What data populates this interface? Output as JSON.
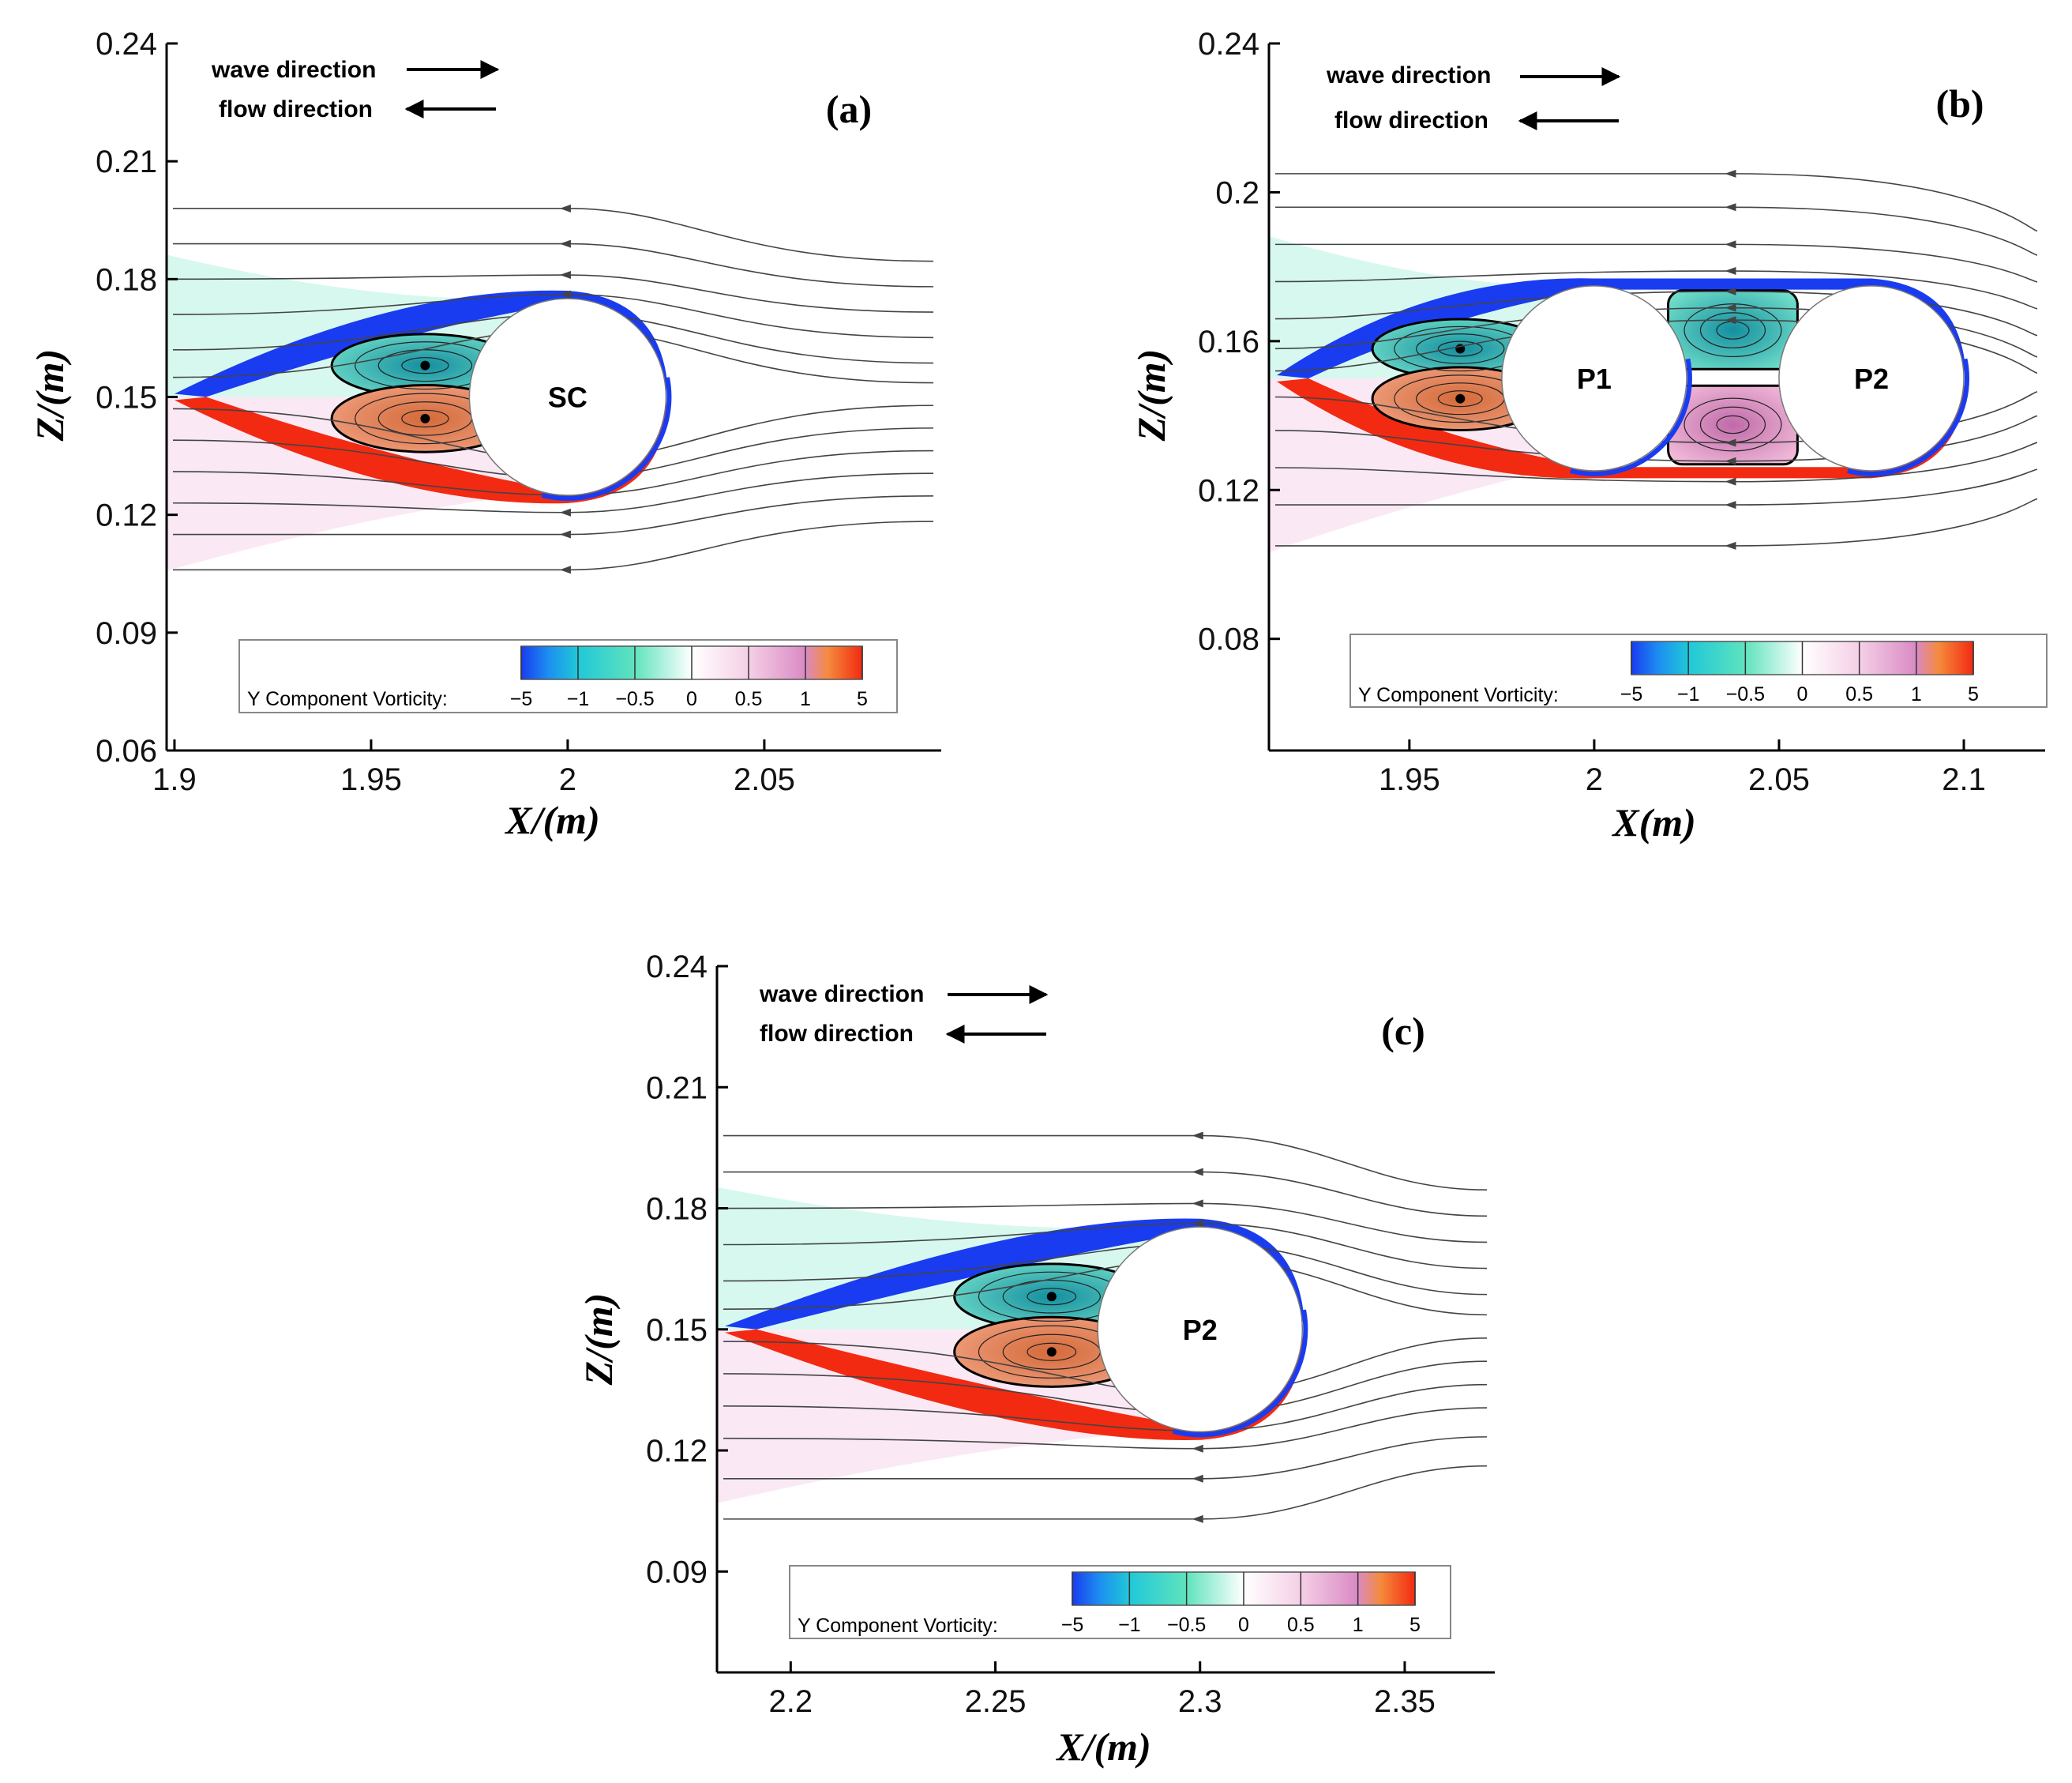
{
  "chart_data": [
    {
      "type": "contour",
      "panel_label": "(a)",
      "title": "",
      "xlabel": "X/(m)",
      "ylabel": "Z/(m)",
      "xlim": [
        1.898,
        2.095
      ],
      "ylim": [
        0.06,
        0.24
      ],
      "xticks": [
        1.9,
        1.95,
        2,
        2.05
      ],
      "xtick_labels": [
        "1.9",
        "1.95",
        "2",
        "2.05"
      ],
      "yticks": [
        0.24,
        0.21,
        0.18,
        0.15,
        0.12,
        0.09,
        0.06
      ],
      "ytick_labels": [
        "0.24",
        "0.21",
        "0.18",
        "0.15",
        "0.12",
        "0.09",
        "0.06"
      ],
      "cylinders": [
        {
          "label": "SC",
          "center": [
            2.0,
            0.15
          ],
          "diameter": 0.05
        }
      ],
      "annotations": {
        "wave": "wave direction",
        "flow": "flow direction"
      },
      "colorbar": {
        "title": "Y Component Vorticity:",
        "levels": [
          -5,
          -1,
          -0.5,
          0,
          0.5,
          1,
          5
        ],
        "level_labels": [
          "−5",
          "−1",
          "−0.5",
          "0",
          "0.5",
          "1",
          "5"
        ]
      },
      "streamline_z_upstream": [
        0.198,
        0.189,
        0.18,
        0.171,
        0.162,
        0.155,
        0.147,
        0.139,
        0.131,
        0.123,
        0.115,
        0.106
      ]
    },
    {
      "type": "contour",
      "panel_label": "(b)",
      "title": "",
      "xlabel": "X(m)",
      "ylabel": "Z/(m)",
      "xlim": [
        1.912,
        2.122
      ],
      "ylim": [
        0.05,
        0.24
      ],
      "xticks": [
        1.95,
        2,
        2.05,
        2.1
      ],
      "xtick_labels": [
        "1.95",
        "2",
        "2.05",
        "2.1"
      ],
      "yticks": [
        0.24,
        0.2,
        0.16,
        0.12,
        0.08
      ],
      "ytick_labels": [
        "0.24",
        "0.2",
        "0.16",
        "0.12",
        "0.08"
      ],
      "cylinders": [
        {
          "label": "P1",
          "center": [
            2.0,
            0.15
          ],
          "diameter": 0.05
        },
        {
          "label": "P2",
          "center": [
            2.075,
            0.15
          ],
          "diameter": 0.05
        }
      ],
      "annotations": {
        "wave": "wave direction",
        "flow": "flow direction"
      },
      "colorbar": {
        "title": "Y Component Vorticity:",
        "levels": [
          -5,
          -1,
          -0.5,
          0,
          0.5,
          1,
          5
        ],
        "level_labels": [
          "−5",
          "−1",
          "−0.5",
          "0",
          "0.5",
          "1",
          "5"
        ]
      },
      "streamline_z_upstream": [
        0.205,
        0.196,
        0.186,
        0.176,
        0.166,
        0.158,
        0.152,
        0.145,
        0.136,
        0.126,
        0.116,
        0.105
      ]
    },
    {
      "type": "contour",
      "panel_label": "(c)",
      "title": "",
      "xlabel": "X/(m)",
      "ylabel": "Z/(m)",
      "xlim": [
        2.182,
        2.372
      ],
      "ylim": [
        0.065,
        0.24
      ],
      "xticks": [
        2.2,
        2.25,
        2.3,
        2.35
      ],
      "xtick_labels": [
        "2.2",
        "2.25",
        "2.3",
        "2.35"
      ],
      "yticks": [
        0.24,
        0.21,
        0.18,
        0.15,
        0.12,
        0.09
      ],
      "ytick_labels": [
        "0.24",
        "0.21",
        "0.18",
        "0.15",
        "0.12",
        "0.09"
      ],
      "cylinders": [
        {
          "label": "P2",
          "center": [
            2.3,
            0.15
          ],
          "diameter": 0.05
        }
      ],
      "annotations": {
        "wave": "wave direction",
        "flow": "flow direction"
      },
      "colorbar": {
        "title": "Y Component Vorticity:",
        "levels": [
          -5,
          -1,
          -0.5,
          0,
          0.5,
          1,
          5
        ],
        "level_labels": [
          "−5",
          "−1",
          "−0.5",
          "0",
          "0.5",
          "1",
          "5"
        ]
      },
      "streamline_z_upstream": [
        0.198,
        0.189,
        0.18,
        0.171,
        0.162,
        0.155,
        0.147,
        0.139,
        0.131,
        0.123,
        0.113,
        0.103
      ]
    }
  ],
  "colors": {
    "neg_strong": "#1a3cf0",
    "neg_mid": "#20c8c8",
    "neg_weak": "#5fe3bd",
    "zero": "#ffffff",
    "pos_weak": "#f5cfe6",
    "pos_mid": "#d98ac4",
    "pos_strong": "#f22a12",
    "streamline": "#444444"
  }
}
